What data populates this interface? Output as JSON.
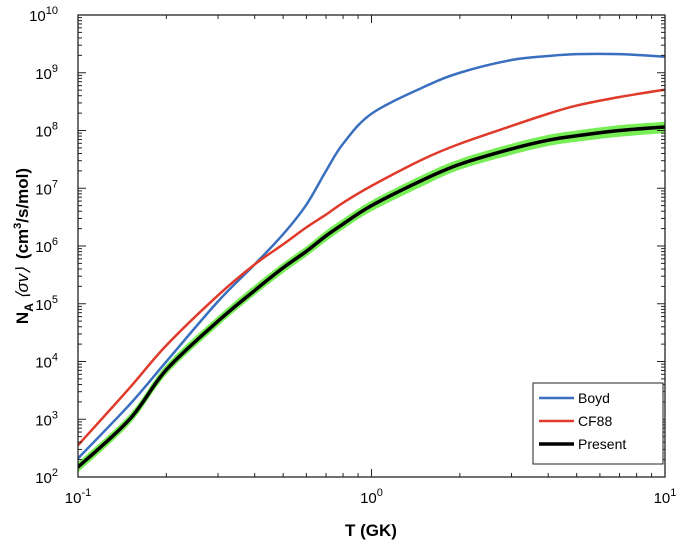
{
  "chart_data": {
    "type": "line",
    "title": "",
    "xlabel": "T (GK)",
    "ylabel": {
      "main": "N",
      "sub": "A",
      "bracket": "⟨σv⟩",
      "units": "(cm",
      "units_sup": "3",
      "units_rest": "/s/mol)"
    },
    "x_scale": "log",
    "y_scale": "log",
    "xlim": [
      0.1,
      10
    ],
    "ylim": [
      100,
      10000000000
    ],
    "x_ticks": [
      {
        "base": "10",
        "exp": "-1",
        "value": 0.1
      },
      {
        "base": "10",
        "exp": "0",
        "value": 1
      },
      {
        "base": "10",
        "exp": "1",
        "value": 10
      }
    ],
    "y_ticks": [
      {
        "base": "10",
        "exp": "2",
        "value": 100.0
      },
      {
        "base": "10",
        "exp": "3",
        "value": 1000.0
      },
      {
        "base": "10",
        "exp": "4",
        "value": 10000.0
      },
      {
        "base": "10",
        "exp": "5",
        "value": 100000.0
      },
      {
        "base": "10",
        "exp": "6",
        "value": 1000000.0
      },
      {
        "base": "10",
        "exp": "7",
        "value": 10000000.0
      },
      {
        "base": "10",
        "exp": "8",
        "value": 100000000.0
      },
      {
        "base": "10",
        "exp": "9",
        "value": 1000000000.0
      },
      {
        "base": "10",
        "exp": "10",
        "value": 10000000000.0
      }
    ],
    "grid": false,
    "legend_position": "bottom-right",
    "x": [
      0.1,
      0.15,
      0.2,
      0.3,
      0.4,
      0.5,
      0.6,
      0.7,
      0.8,
      1.0,
      1.5,
      2.0,
      3.0,
      4.0,
      5.0,
      7.0,
      10.0
    ],
    "series": [
      {
        "name": "Boyd",
        "color": "#3a6fbf",
        "values": [
          210,
          1800,
          10000.0,
          110000.0,
          480000.0,
          1600000.0,
          5200000.0,
          20000000.0,
          59000000.0,
          195000000.0,
          560000000.0,
          1000000000.0,
          1660000000.0,
          1950000000.0,
          2100000000.0,
          2100000000.0,
          1900000000.0
        ]
      },
      {
        "name": "CF88",
        "color": "#e03a2a",
        "values": [
          355,
          3500,
          19000.0,
          140000.0,
          480000.0,
          1070000.0,
          2100000.0,
          3500000.0,
          5600000.0,
          11000000.0,
          32000000.0,
          59000000.0,
          120000000.0,
          195000000.0,
          270000000.0,
          380000000.0,
          510000000.0
        ]
      },
      {
        "name": "Present",
        "color": "#000000",
        "values": [
          148,
          1000,
          7200,
          50000.0,
          170000.0,
          420000.0,
          810000.0,
          1500000.0,
          2400000.0,
          5000000.0,
          14000000.0,
          26000000.0,
          48000000.0,
          68000000.0,
          81000000.0,
          100000000.0,
          115000000.0
        ],
        "band_color": "#77ee55",
        "band_lower": [
          120,
          820,
          5900,
          41000.0,
          140000.0,
          340000.0,
          660000.0,
          1200000.0,
          1950000.0,
          4000000.0,
          11000000.0,
          21000000.0,
          38000000.0,
          54000000.0,
          64000000.0,
          78000000.0,
          90000000.0
        ],
        "band_upper": [
          180,
          1220,
          8800,
          61000.0,
          210000.0,
          510000.0,
          990000.0,
          1850000.0,
          2950000.0,
          6100000.0,
          17200000.0,
          32000000.0,
          59000000.0,
          84000000.0,
          100000000.0,
          124000000.0,
          142000000.0
        ]
      }
    ]
  }
}
